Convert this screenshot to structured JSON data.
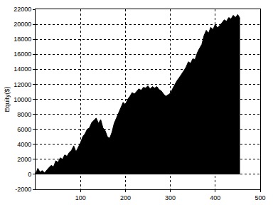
{
  "chart_data": {
    "type": "area",
    "y_label": "Equity($)",
    "color": "#000000",
    "x": [
      0,
      5,
      10,
      15,
      20,
      25,
      30,
      35,
      40,
      45,
      50,
      55,
      60,
      65,
      70,
      75,
      80,
      85,
      90,
      95,
      100,
      105,
      110,
      115,
      120,
      125,
      130,
      135,
      140,
      145,
      150,
      155,
      160,
      165,
      170,
      175,
      180,
      185,
      190,
      195,
      200,
      205,
      210,
      215,
      220,
      225,
      230,
      235,
      240,
      245,
      250,
      255,
      260,
      265,
      270,
      275,
      280,
      285,
      290,
      295,
      300,
      305,
      310,
      315,
      320,
      325,
      330,
      335,
      340,
      345,
      350,
      355,
      360,
      365,
      370,
      375,
      380,
      385,
      390,
      395,
      400,
      405,
      410,
      415,
      420,
      425,
      430,
      435,
      440,
      445,
      450,
      455
    ],
    "values": [
      0,
      800,
      300,
      500,
      200,
      600,
      900,
      1200,
      1000,
      1800,
      1600,
      2200,
      2000,
      2600,
      2400,
      2900,
      3200,
      3800,
      3000,
      3600,
      4200,
      5000,
      5400,
      6000,
      6200,
      6900,
      7200,
      7500,
      6800,
      7300,
      6200,
      5800,
      5000,
      4800,
      5600,
      6800,
      7500,
      8200,
      8900,
      9600,
      9300,
      10000,
      10400,
      10900,
      10700,
      11100,
      11400,
      11200,
      11600,
      11500,
      11800,
      11400,
      11700,
      11500,
      11700,
      11300,
      11100,
      10700,
      10400,
      10600,
      10800,
      11400,
      12000,
      12500,
      12900,
      13300,
      13800,
      14300,
      15000,
      14800,
      15400,
      15300,
      16200,
      16800,
      17300,
      18500,
      19200,
      18800,
      19600,
      19300,
      20000,
      19500,
      19800,
      20200,
      20600,
      20400,
      20900,
      20700,
      21200,
      20900,
      21300,
      20800
    ],
    "xlim": [
      0,
      500
    ],
    "xticks": [
      100,
      200,
      300,
      400,
      500
    ],
    "ylim": [
      -2000,
      22000
    ],
    "yticks": [
      -2000,
      0,
      2000,
      4000,
      6000,
      8000,
      10000,
      12000,
      14000,
      16000,
      18000,
      20000,
      22000
    ],
    "grid": true
  }
}
